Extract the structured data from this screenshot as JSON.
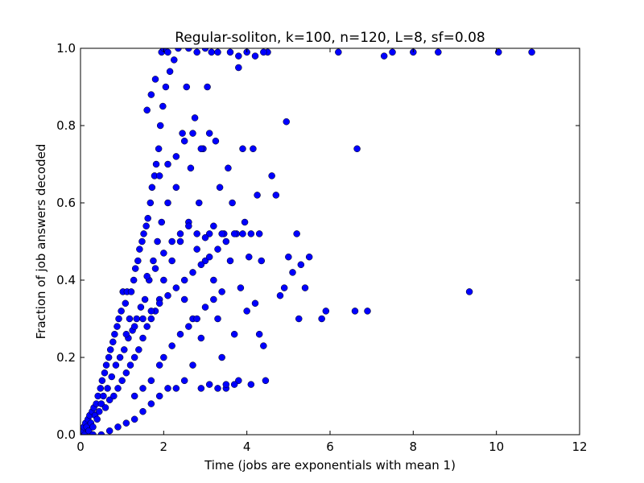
{
  "chart_data": {
    "type": "scatter",
    "title": "Regular-soliton, k=100, n=120, L=8, sf=0.08",
    "xlabel": "Time (jobs are exponentials with mean 1)",
    "ylabel": "Fraction of job answers decoded",
    "xlim": [
      0,
      12
    ],
    "ylim": [
      0,
      1
    ],
    "xticks": [
      0,
      2,
      4,
      6,
      8,
      10,
      12
    ],
    "yticks": [
      0.0,
      0.2,
      0.4,
      0.6,
      0.8,
      1.0
    ],
    "xtick_labels": [
      "0",
      "2",
      "4",
      "6",
      "8",
      "10",
      "12"
    ],
    "ytick_labels": [
      "0.0",
      "0.2",
      "0.4",
      "0.6",
      "0.8",
      "1.0"
    ],
    "grid": false,
    "marker_color": "#0000ff",
    "series": [
      {
        "points": [
          [
            0.02,
            0.0
          ],
          [
            0.05,
            0.01
          ],
          [
            0.08,
            0.02
          ],
          [
            0.1,
            0.0
          ],
          [
            0.12,
            0.03
          ],
          [
            0.15,
            0.02
          ],
          [
            0.18,
            0.04
          ],
          [
            0.2,
            0.01
          ],
          [
            0.22,
            0.05
          ],
          [
            0.25,
            0.03
          ],
          [
            0.28,
            0.06
          ],
          [
            0.3,
            0.02
          ],
          [
            0.32,
            0.07
          ],
          [
            0.35,
            0.05
          ],
          [
            0.38,
            0.08
          ],
          [
            0.4,
            0.04
          ],
          [
            0.42,
            0.1
          ],
          [
            0.45,
            0.06
          ],
          [
            0.48,
            0.12
          ],
          [
            0.5,
            0.08
          ],
          [
            0.52,
            0.14
          ],
          [
            0.55,
            0.1
          ],
          [
            0.58,
            0.16
          ],
          [
            0.6,
            0.07
          ],
          [
            0.62,
            0.18
          ],
          [
            0.65,
            0.12
          ],
          [
            0.68,
            0.2
          ],
          [
            0.7,
            0.09
          ],
          [
            0.72,
            0.22
          ],
          [
            0.75,
            0.15
          ],
          [
            0.78,
            0.24
          ],
          [
            0.8,
            0.1
          ],
          [
            0.82,
            0.26
          ],
          [
            0.85,
            0.18
          ],
          [
            0.88,
            0.28
          ],
          [
            0.9,
            0.12
          ],
          [
            0.92,
            0.3
          ],
          [
            0.95,
            0.2
          ],
          [
            0.98,
            0.32
          ],
          [
            1.0,
            0.14
          ],
          [
            1.02,
            0.37
          ],
          [
            1.05,
            0.22
          ],
          [
            1.08,
            0.34
          ],
          [
            1.1,
            0.16
          ],
          [
            1.12,
            0.37
          ],
          [
            1.15,
            0.25
          ],
          [
            1.18,
            0.3
          ],
          [
            1.2,
            0.18
          ],
          [
            1.22,
            0.37
          ],
          [
            1.25,
            0.27
          ],
          [
            1.28,
            0.4
          ],
          [
            1.3,
            0.2
          ],
          [
            1.32,
            0.43
          ],
          [
            1.35,
            0.3
          ],
          [
            1.38,
            0.45
          ],
          [
            1.4,
            0.22
          ],
          [
            1.42,
            0.48
          ],
          [
            1.45,
            0.33
          ],
          [
            1.48,
            0.5
          ],
          [
            1.5,
            0.25
          ],
          [
            1.52,
            0.52
          ],
          [
            1.55,
            0.35
          ],
          [
            1.58,
            0.54
          ],
          [
            1.6,
            0.28
          ],
          [
            1.62,
            0.56
          ],
          [
            1.65,
            0.4
          ],
          [
            1.68,
            0.6
          ],
          [
            1.7,
            0.3
          ],
          [
            1.72,
            0.64
          ],
          [
            1.75,
            0.45
          ],
          [
            1.78,
            0.67
          ],
          [
            1.8,
            0.32
          ],
          [
            1.82,
            0.7
          ],
          [
            1.85,
            0.5
          ],
          [
            1.88,
            0.74
          ],
          [
            1.9,
            0.35
          ],
          [
            1.92,
            0.8
          ],
          [
            1.95,
            0.55
          ],
          [
            1.98,
            0.85
          ],
          [
            2.0,
            0.4
          ],
          [
            2.05,
            0.9
          ],
          [
            2.1,
            0.6
          ],
          [
            2.15,
            0.94
          ],
          [
            2.2,
            0.45
          ],
          [
            2.25,
            0.97
          ],
          [
            2.3,
            0.64
          ],
          [
            2.35,
            1.0
          ],
          [
            2.4,
            0.5
          ],
          [
            2.45,
            0.78
          ],
          [
            2.5,
            0.35
          ],
          [
            2.55,
            0.9
          ],
          [
            2.6,
            0.55
          ],
          [
            2.65,
            0.69
          ],
          [
            2.7,
            0.3
          ],
          [
            2.75,
            0.82
          ],
          [
            2.8,
            0.48
          ],
          [
            2.85,
            0.6
          ],
          [
            2.9,
            0.25
          ],
          [
            2.95,
            0.74
          ],
          [
            3.0,
            0.45
          ],
          [
            3.05,
            0.9
          ],
          [
            3.1,
            0.52
          ],
          [
            3.15,
            0.99
          ],
          [
            3.2,
            0.4
          ],
          [
            3.25,
            0.76
          ],
          [
            3.3,
            0.3
          ],
          [
            3.35,
            0.64
          ],
          [
            3.4,
            0.2
          ],
          [
            3.45,
            0.52
          ],
          [
            3.5,
            0.12
          ],
          [
            3.55,
            0.69
          ],
          [
            3.6,
            0.45
          ],
          [
            3.65,
            0.6
          ],
          [
            3.7,
            0.26
          ],
          [
            3.75,
            0.52
          ],
          [
            3.8,
            0.14
          ],
          [
            3.85,
            0.38
          ],
          [
            3.9,
            0.74
          ],
          [
            3.95,
            0.55
          ],
          [
            4.0,
            0.32
          ],
          [
            4.05,
            0.46
          ],
          [
            4.1,
            0.13
          ],
          [
            4.15,
            0.74
          ],
          [
            4.2,
            0.34
          ],
          [
            4.25,
            0.62
          ],
          [
            4.3,
            0.26
          ],
          [
            4.35,
            0.45
          ],
          [
            4.4,
            0.23
          ],
          [
            4.45,
            0.14
          ],
          [
            4.5,
            0.99
          ],
          [
            4.6,
            0.67
          ],
          [
            4.7,
            0.62
          ],
          [
            4.8,
            0.36
          ],
          [
            4.9,
            0.38
          ],
          [
            4.95,
            0.81
          ],
          [
            5.0,
            0.46
          ],
          [
            5.1,
            0.42
          ],
          [
            5.2,
            0.52
          ],
          [
            5.25,
            0.3
          ],
          [
            5.3,
            0.44
          ],
          [
            5.4,
            0.38
          ],
          [
            5.5,
            0.46
          ],
          [
            5.8,
            0.3
          ],
          [
            5.9,
            0.32
          ],
          [
            6.2,
            0.99
          ],
          [
            6.6,
            0.32
          ],
          [
            6.65,
            0.74
          ],
          [
            6.9,
            0.32
          ],
          [
            7.3,
            0.98
          ],
          [
            7.5,
            0.99
          ],
          [
            8.0,
            0.99
          ],
          [
            8.6,
            0.99
          ],
          [
            9.35,
            0.37
          ],
          [
            10.05,
            0.99
          ],
          [
            10.85,
            0.99
          ],
          [
            0.3,
            0.0
          ],
          [
            0.5,
            0.0
          ],
          [
            0.7,
            0.01
          ],
          [
            0.9,
            0.02
          ],
          [
            1.1,
            0.03
          ],
          [
            1.3,
            0.04
          ],
          [
            1.5,
            0.06
          ],
          [
            1.7,
            0.08
          ],
          [
            1.9,
            0.1
          ],
          [
            2.1,
            0.12
          ],
          [
            2.3,
            0.12
          ],
          [
            2.5,
            0.14
          ],
          [
            2.7,
            0.18
          ],
          [
            2.9,
            0.12
          ],
          [
            3.1,
            0.13
          ],
          [
            3.3,
            0.12
          ],
          [
            3.5,
            0.13
          ],
          [
            3.7,
            0.13
          ],
          [
            2.2,
            0.23
          ],
          [
            2.4,
            0.26
          ],
          [
            2.6,
            0.28
          ],
          [
            2.8,
            0.3
          ],
          [
            3.0,
            0.33
          ],
          [
            3.2,
            0.35
          ],
          [
            3.4,
            0.37
          ],
          [
            1.3,
            0.1
          ],
          [
            1.5,
            0.12
          ],
          [
            1.7,
            0.14
          ],
          [
            1.9,
            0.18
          ],
          [
            2.0,
            0.2
          ],
          [
            1.6,
            0.41
          ],
          [
            1.8,
            0.43
          ],
          [
            2.0,
            0.47
          ],
          [
            2.2,
            0.5
          ],
          [
            2.4,
            0.52
          ],
          [
            2.6,
            0.54
          ],
          [
            2.8,
            0.52
          ],
          [
            3.0,
            0.51
          ],
          [
            3.2,
            0.54
          ],
          [
            3.4,
            0.52
          ],
          [
            1.1,
            0.26
          ],
          [
            1.3,
            0.28
          ],
          [
            1.5,
            0.3
          ],
          [
            1.7,
            0.32
          ],
          [
            1.9,
            0.34
          ],
          [
            2.1,
            0.36
          ],
          [
            2.3,
            0.38
          ],
          [
            2.5,
            0.4
          ],
          [
            2.7,
            0.42
          ],
          [
            2.9,
            0.44
          ],
          [
            3.1,
            0.46
          ],
          [
            3.3,
            0.48
          ],
          [
            3.5,
            0.5
          ],
          [
            3.7,
            0.52
          ],
          [
            3.9,
            0.52
          ],
          [
            4.1,
            0.52
          ],
          [
            4.3,
            0.52
          ],
          [
            1.9,
            0.67
          ],
          [
            2.1,
            0.7
          ],
          [
            2.3,
            0.72
          ],
          [
            2.5,
            0.76
          ],
          [
            2.7,
            0.78
          ],
          [
            2.9,
            0.74
          ],
          [
            3.1,
            0.78
          ],
          [
            1.95,
            0.99
          ],
          [
            2.0,
            1.0
          ],
          [
            2.1,
            0.99
          ],
          [
            2.6,
            1.0
          ],
          [
            2.8,
            0.99
          ],
          [
            3.0,
            1.0
          ],
          [
            3.3,
            0.99
          ],
          [
            3.6,
            0.99
          ],
          [
            3.8,
            0.98
          ],
          [
            4.0,
            0.99
          ],
          [
            4.2,
            0.98
          ],
          [
            4.4,
            0.99
          ],
          [
            3.8,
            0.95
          ],
          [
            1.6,
            0.84
          ],
          [
            1.7,
            0.88
          ],
          [
            1.8,
            0.92
          ]
        ]
      }
    ]
  }
}
